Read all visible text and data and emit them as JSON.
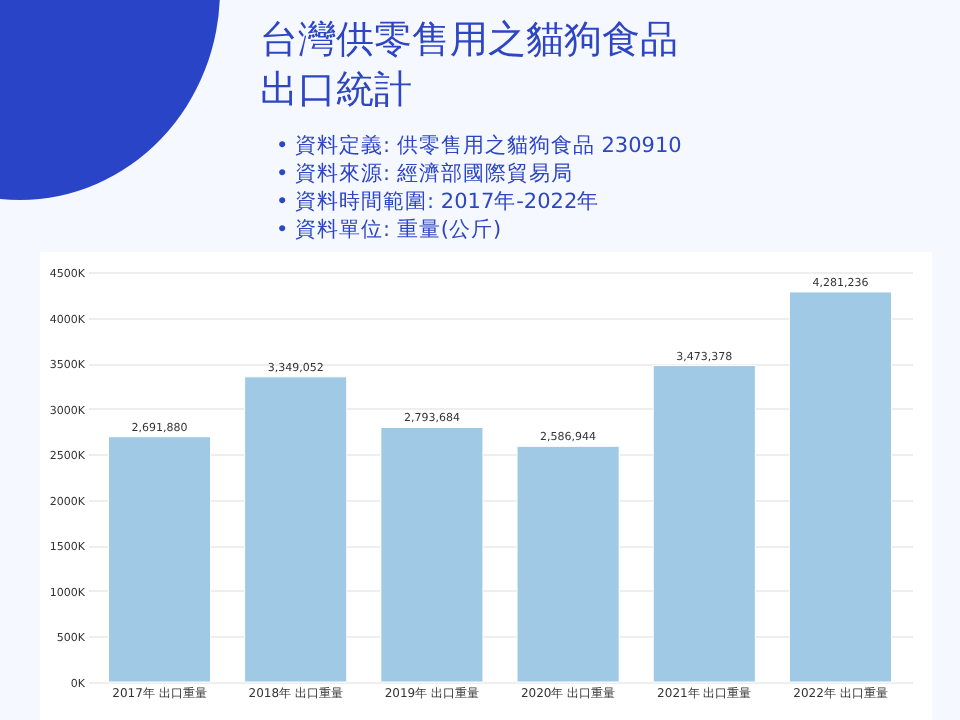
{
  "chart_data": {
    "type": "bar",
    "title": "台灣供零售用之貓狗食品出口統計",
    "annotations": [
      "• 資料定義: 供零售用之貓狗食品 230910",
      "• 資料來源:  經濟部國際貿易局",
      "• 資料時間範圍:  2017年-2022年",
      "• 資料單位:  重量(公斤)"
    ],
    "value_labels": [
      "2,691,880",
      "3,349,052",
      "2,793,684",
      "2,586,944",
      "3,473,378",
      "4,281,236"
    ],
    "categories": [
      "2017年 出口重量",
      "2018年 出口重量",
      "2019年 出口重量",
      "2020年 出口重量",
      "2021年 出口重量",
      "2022年 出口重量"
    ],
    "values": [
      2691880,
      3349052,
      2793684,
      2586944,
      3473378,
      4281236
    ],
    "color": "#a0c9e6",
    "ylim": [
      0,
      4500000
    ],
    "yticks": [
      {
        "value": 0,
        "label": "0K"
      },
      {
        "value": 500000,
        "label": "500K"
      },
      {
        "value": 1000000,
        "label": "1000K"
      },
      {
        "value": 1500000,
        "label": "1500K"
      },
      {
        "value": 2000000,
        "label": "2000K"
      },
      {
        "value": 2500000,
        "label": "2500K"
      },
      {
        "value": 3000000,
        "label": "3000K"
      },
      {
        "value": 3500000,
        "label": "3500K"
      },
      {
        "value": 4000000,
        "label": "4000K"
      },
      {
        "value": 4500000,
        "label": "4500K"
      }
    ],
    "grid": "y"
  }
}
